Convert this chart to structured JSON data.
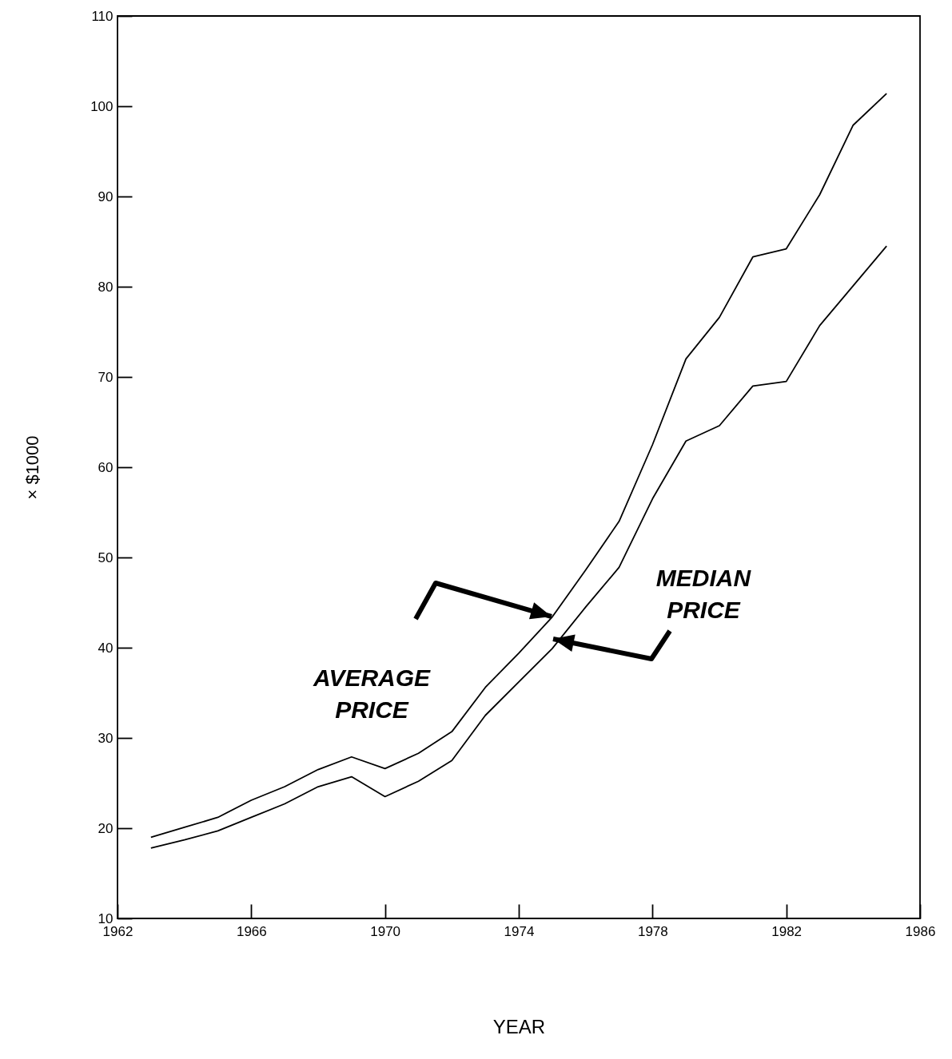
{
  "chart_data": {
    "type": "line",
    "xlabel": "YEAR",
    "ylabel": "× $1000",
    "x": [
      1963,
      1964,
      1965,
      1966,
      1967,
      1968,
      1969,
      1970,
      1971,
      1972,
      1973,
      1974,
      1975,
      1976,
      1977,
      1978,
      1979,
      1980,
      1981,
      1982,
      1983,
      1984,
      1985
    ],
    "series": [
      {
        "color": "#000000",
        "values": [
          19.0,
          20.1,
          21.2,
          23.1,
          24.6,
          26.5,
          27.9,
          26.6,
          28.3,
          30.7,
          35.6,
          39.4,
          43.4,
          48.6,
          54.0,
          62.5,
          72.0,
          76.6,
          83.3,
          84.2,
          90.2,
          97.9,
          101.4
        ]
      },
      {
        "color": "#000000",
        "values": [
          17.8,
          18.7,
          19.7,
          21.2,
          22.7,
          24.6,
          25.7,
          23.5,
          25.2,
          27.5,
          32.5,
          36.2,
          39.9,
          44.5,
          48.9,
          56.5,
          62.9,
          64.6,
          69.0,
          69.5,
          75.7,
          80.1,
          84.5
        ]
      }
    ],
    "xlim": [
      1962,
      1986
    ],
    "xticks": [
      1962,
      1966,
      1970,
      1974,
      1978,
      1982,
      1986
    ],
    "ylim": [
      10,
      110
    ],
    "yticks": [
      10,
      20,
      30,
      40,
      50,
      60,
      70,
      80,
      90,
      100,
      110
    ],
    "grid": false,
    "annotations": [
      "AVERAGE PRICE",
      "MEDIAN PRICE"
    ]
  }
}
